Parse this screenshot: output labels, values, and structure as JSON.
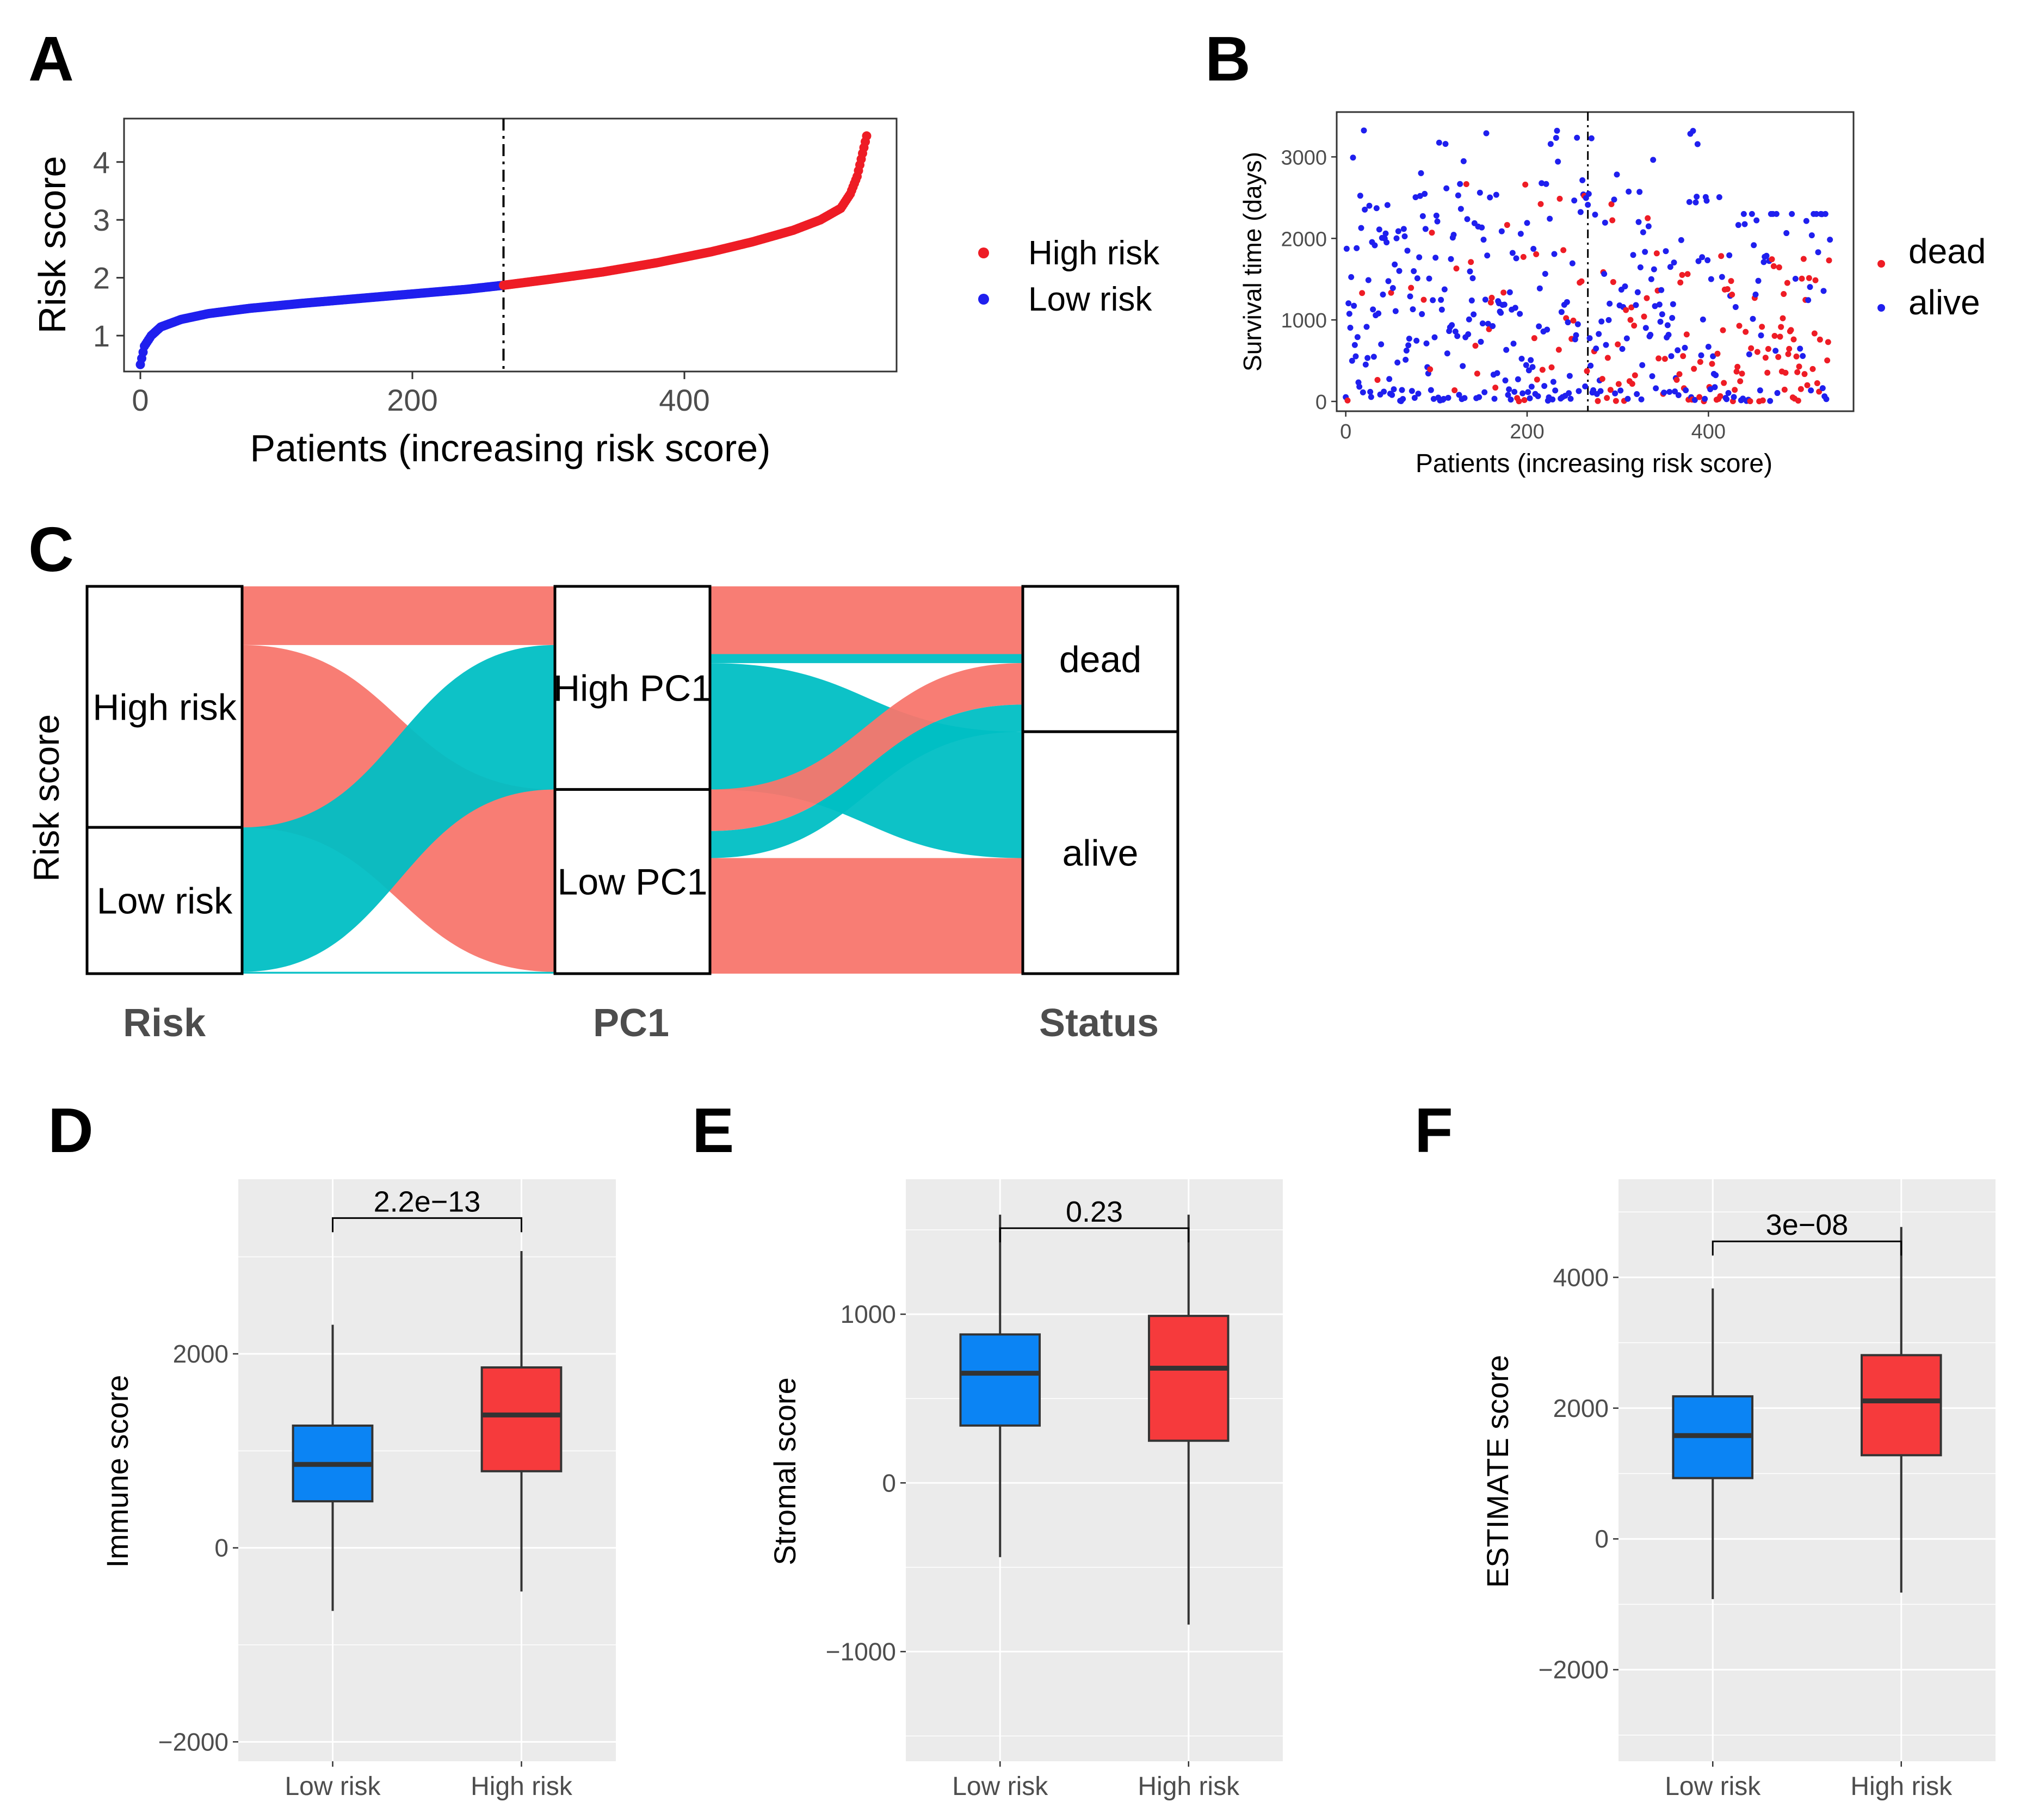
{
  "colors": {
    "high": "#ee1c25",
    "low": "#1f1fee",
    "dead": "#ee1c25",
    "alive": "#1f1fee",
    "flow_red": "#f8766d",
    "flow_teal": "#00bfc4",
    "box_low": "#0b84f4",
    "box_high": "#f63a3c",
    "panel_bg": "#ebebeb",
    "grid": "#ffffff"
  },
  "panels": {
    "A": {
      "letter": "A"
    },
    "B": {
      "letter": "B"
    },
    "C": {
      "letter": "C"
    },
    "D": {
      "letter": "D"
    },
    "E": {
      "letter": "E"
    },
    "F": {
      "letter": "F"
    }
  },
  "chart_data": [
    {
      "id": "A",
      "type": "scatter",
      "title": "",
      "xlabel": "Patients (increasing risk score)",
      "ylabel": "Risk score",
      "xlim": [
        -12,
        556
      ],
      "ylim": [
        0.38,
        4.75
      ],
      "xticks": [
        0,
        200,
        400
      ],
      "xtick_labels": [
        "0",
        "200",
        "400"
      ],
      "yticks": [
        1,
        2,
        3,
        4
      ],
      "ytick_labels": [
        "1",
        "2",
        "3",
        "4"
      ],
      "n_points": 535,
      "cutoff_index": 267,
      "curve_anchors": {
        "x": [
          0,
          3,
          8,
          15,
          30,
          50,
          80,
          120,
          160,
          200,
          240,
          267,
          300,
          340,
          380,
          420,
          450,
          480,
          500,
          515,
          522,
          527,
          530,
          533,
          535
        ],
        "y": [
          0.5,
          0.82,
          1.0,
          1.15,
          1.28,
          1.38,
          1.47,
          1.56,
          1.64,
          1.72,
          1.8,
          1.87,
          1.97,
          2.1,
          2.26,
          2.45,
          2.62,
          2.82,
          3.0,
          3.2,
          3.45,
          3.75,
          4.05,
          4.35,
          4.55
        ]
      },
      "legend": [
        {
          "label": "High risk",
          "series": "high"
        },
        {
          "label": "Low risk",
          "series": "low"
        }
      ],
      "legend_position": "right"
    },
    {
      "id": "B",
      "type": "scatter",
      "title": "",
      "xlabel": "Patients (increasing risk score)",
      "ylabel": "Survival time (days)",
      "xlim": [
        -10,
        560
      ],
      "ylim": [
        -120,
        3550
      ],
      "xticks": [
        0,
        200,
        400
      ],
      "xtick_labels": [
        "0",
        "200",
        "400"
      ],
      "yticks": [
        0,
        1000,
        2000,
        3000
      ],
      "ytick_labels": [
        "0",
        "1000",
        "2000",
        "3000"
      ],
      "n_points": 535,
      "cutoff_index": 267,
      "legend": [
        {
          "label": "dead",
          "series": "dead"
        },
        {
          "label": "alive",
          "series": "alive"
        }
      ],
      "legend_position": "right"
    },
    {
      "id": "C",
      "type": "alluvial",
      "ylabel": "Risk score",
      "axes": [
        {
          "label": "Risk",
          "strata": [
            {
              "label": "High risk",
              "size": 267
            },
            {
              "label": "Low risk",
              "size": 162
            }
          ]
        },
        {
          "label": "PC1",
          "strata": [
            {
              "label": "High PC1",
              "size": 225
            },
            {
              "label": "Low PC1",
              "size": 204
            }
          ]
        },
        {
          "label": "Status",
          "strata": [
            {
              "label": "dead",
              "size": 161
            },
            {
              "label": "alive",
              "size": 268
            }
          ]
        }
      ],
      "flows_stage1": [
        {
          "from": "High risk",
          "to": "High PC1",
          "value": 65,
          "color": "red"
        },
        {
          "from": "High risk",
          "to": "Low PC1",
          "value": 202,
          "color": "red"
        },
        {
          "from": "Low risk",
          "to": "High PC1",
          "value": 160,
          "color": "teal"
        },
        {
          "from": "Low risk",
          "to": "Low PC1",
          "value": 2,
          "color": "teal"
        }
      ],
      "flows_stage2": [
        {
          "from": "High PC1",
          "to": "dead",
          "value": 75,
          "color": "red"
        },
        {
          "from": "High PC1",
          "to": "dead",
          "value": 10,
          "color": "teal"
        },
        {
          "from": "High PC1",
          "to": "alive",
          "value": 140,
          "color": "teal"
        },
        {
          "from": "Low PC1",
          "to": "dead",
          "value": 46,
          "color": "red"
        },
        {
          "from": "Low PC1",
          "to": "dead",
          "value": 30,
          "color": "teal"
        },
        {
          "from": "Low PC1",
          "to": "alive",
          "value": 128,
          "color": "red"
        }
      ]
    },
    {
      "id": "D",
      "type": "boxplot",
      "ylabel": "Immune score",
      "categories": [
        "Low risk",
        "High risk"
      ],
      "ylim": [
        -2200,
        3800
      ],
      "yticks": [
        -2000,
        0,
        2000
      ],
      "ytick_labels": [
        "−2000",
        "0",
        "2000"
      ],
      "boxes": [
        {
          "category": "Low risk",
          "whisker_low": -650,
          "q1": 480,
          "median": 860,
          "q3": 1260,
          "whisker_high": 2300,
          "color": "low"
        },
        {
          "category": "High risk",
          "whisker_low": -450,
          "q1": 790,
          "median": 1370,
          "q3": 1860,
          "whisker_high": 3060,
          "color": "high"
        }
      ],
      "pvalue": "2.2e−13",
      "pvalue_y": 3400
    },
    {
      "id": "E",
      "type": "boxplot",
      "ylabel": "Stromal score",
      "categories": [
        "Low risk",
        "High risk"
      ],
      "ylim": [
        -1650,
        1800
      ],
      "yticks": [
        -1000,
        0,
        1000
      ],
      "ytick_labels": [
        "−1000",
        "0",
        "1000"
      ],
      "boxes": [
        {
          "category": "Low risk",
          "whisker_low": -440,
          "q1": 340,
          "median": 650,
          "q3": 880,
          "whisker_high": 1590,
          "color": "low"
        },
        {
          "category": "High risk",
          "whisker_low": -840,
          "q1": 250,
          "median": 680,
          "q3": 990,
          "whisker_high": 1590,
          "color": "high"
        }
      ],
      "pvalue": "0.23",
      "pvalue_y": 1510
    },
    {
      "id": "F",
      "type": "boxplot",
      "ylabel": "ESTIMATE score",
      "categories": [
        "Low risk",
        "High risk"
      ],
      "ylim": [
        -3400,
        5500
      ],
      "yticks": [
        -2000,
        0,
        2000,
        4000
      ],
      "ytick_labels": [
        "−2000",
        "0",
        "2000",
        "4000"
      ],
      "boxes": [
        {
          "category": "Low risk",
          "whisker_low": -920,
          "q1": 930,
          "median": 1580,
          "q3": 2180,
          "whisker_high": 3830,
          "color": "low"
        },
        {
          "category": "High risk",
          "whisker_low": -820,
          "q1": 1280,
          "median": 2110,
          "q3": 2810,
          "whisker_high": 4770,
          "color": "high"
        }
      ],
      "pvalue": "3e−08",
      "pvalue_y": 4550
    }
  ]
}
